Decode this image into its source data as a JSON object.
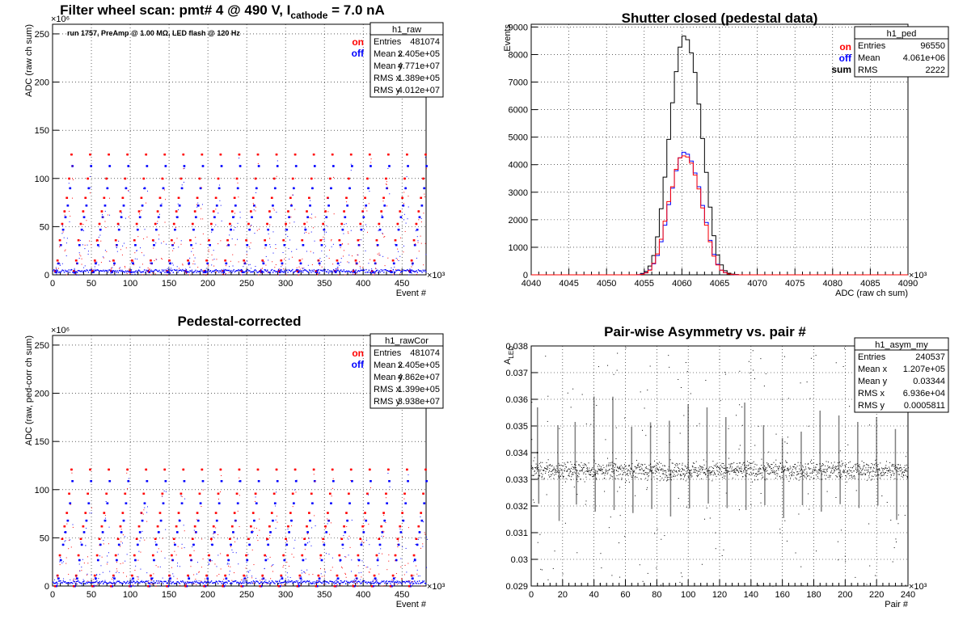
{
  "chart_data": [
    {
      "type": "scatter",
      "title": "Filter wheel scan: pmt#   4 @   490 V, I",
      "title_sub": "cathode",
      "title_tail": " = 7.0 nA",
      "xlabel": "Event #",
      "ylabel": "ADC (raw ch sum)",
      "x_multiplier": "×10³",
      "y_multiplier": "×10⁶",
      "xlim": [
        0,
        481
      ],
      "ylim": [
        0,
        260
      ],
      "xticks": [
        0,
        50,
        100,
        150,
        200,
        250,
        300,
        350,
        400,
        450
      ],
      "yticks": [
        0,
        50,
        100,
        150,
        200,
        250
      ],
      "annotation": "run 1757, PreAmp @ 1.00 MΩ, LED flash @  120 Hz",
      "legend": [
        {
          "name": "on",
          "color": "#ff0000"
        },
        {
          "name": "off",
          "color": "#0000ff"
        }
      ],
      "stats": {
        "name": "h1_raw",
        "rows": [
          [
            "Entries",
            "481074"
          ],
          [
            "Mean x",
            "2.405e+05"
          ],
          [
            "Mean y",
            "4.771e+07"
          ],
          [
            "RMS x",
            "1.389e+05"
          ],
          [
            "RMS y",
            "4.012e+07"
          ]
        ]
      },
      "levels_on": [
        4,
        15,
        36,
        53,
        66,
        80,
        100,
        125
      ],
      "levels_off": [
        3,
        12,
        31,
        47,
        60,
        72,
        90,
        113
      ],
      "step_period": 24
    },
    {
      "type": "histogram",
      "title": "Shutter closed (pedestal data)",
      "xlabel": "ADC (raw ch sum)",
      "ylabel": "Events",
      "x_multiplier": "×10³",
      "xlim": [
        4040,
        4090
      ],
      "ylim": [
        0,
        9100
      ],
      "xticks": [
        4040,
        4045,
        4050,
        4055,
        4060,
        4065,
        4070,
        4075,
        4080,
        4085,
        4090
      ],
      "yticks": [
        0,
        1000,
        2000,
        3000,
        4000,
        5000,
        6000,
        7000,
        8000,
        9000
      ],
      "legend": [
        {
          "name": "on",
          "color": "#ff0000"
        },
        {
          "name": "off",
          "color": "#0000ff"
        },
        {
          "name": "sum",
          "color": "#000000"
        }
      ],
      "stats": {
        "name": "h1_ped",
        "rows": [
          [
            "Entries",
            "96550"
          ],
          [
            "Mean",
            "4.061e+06"
          ],
          [
            "RMS",
            "2222"
          ]
        ]
      },
      "bin_width": 0.5,
      "bin_start": 4054,
      "sum": [
        5,
        50,
        120,
        320,
        700,
        1380,
        2400,
        3550,
        4920,
        6250,
        7380,
        8270,
        8670,
        8540,
        8060,
        7350,
        6200,
        4950,
        3720,
        2460,
        1420,
        720,
        360,
        150,
        60,
        25,
        10
      ],
      "on": [
        2,
        20,
        70,
        170,
        420,
        760,
        1290,
        1950,
        2660,
        3200,
        3830,
        4250,
        4320,
        4280,
        4060,
        3620,
        3120,
        2430,
        1800,
        1200,
        680,
        360,
        170,
        80,
        30,
        10,
        4
      ],
      "off": [
        2,
        25,
        80,
        180,
        400,
        700,
        1200,
        1800,
        2550,
        3150,
        3780,
        4250,
        4450,
        4380,
        4130,
        3700,
        3200,
        2520,
        1900,
        1250,
        740,
        380,
        170,
        80,
        30,
        10,
        4
      ]
    },
    {
      "type": "scatter",
      "title": "Pedestal-corrected",
      "xlabel": "Event #",
      "ylabel": "ADC (raw, ped-corr ch sum)",
      "x_multiplier": "×10³",
      "y_multiplier": "×10⁶",
      "xlim": [
        0,
        481
      ],
      "ylim": [
        0,
        260
      ],
      "xticks": [
        0,
        50,
        100,
        150,
        200,
        250,
        300,
        350,
        400,
        450
      ],
      "yticks": [
        0,
        50,
        100,
        150,
        200,
        250
      ],
      "legend": [
        {
          "name": "on",
          "color": "#ff0000"
        },
        {
          "name": "off",
          "color": "#0000ff"
        }
      ],
      "stats": {
        "name": "h1_rawCor",
        "rows": [
          [
            "Entries",
            "481074"
          ],
          [
            "Mean x",
            "2.405e+05"
          ],
          [
            "Mean y",
            "4.862e+07"
          ],
          [
            "RMS x",
            "1.399e+05"
          ],
          [
            "RMS y",
            "3.938e+07"
          ]
        ]
      },
      "levels_on": [
        0,
        11,
        32,
        49,
        62,
        76,
        96,
        121
      ],
      "levels_off": [
        0,
        8,
        27,
        43,
        56,
        68,
        86,
        109
      ],
      "step_period": 24
    },
    {
      "type": "scatter",
      "title": "Pair-wise Asymmetry vs. pair #",
      "xlabel": "Pair #",
      "ylabel": "A",
      "ylabel_sub": "LED",
      "x_multiplier": "×10³",
      "xlim": [
        0,
        240
      ],
      "ylim": [
        0.029,
        0.038
      ],
      "xticks": [
        0,
        20,
        40,
        60,
        80,
        100,
        120,
        140,
        160,
        180,
        200,
        220,
        240
      ],
      "yticks": [
        0.029,
        0.03,
        0.031,
        0.032,
        0.033,
        0.034,
        0.035,
        0.036,
        0.037,
        0.038
      ],
      "ytick_labels": [
        "0.029",
        "0.03",
        "0.031",
        "0.032",
        "0.033",
        "0.034",
        "0.035",
        "0.036",
        "0.037",
        "0.038"
      ],
      "stats": {
        "name": "h1_asym_my",
        "rows": [
          [
            "Entries",
            "240537"
          ],
          [
            "Mean x",
            "1.207e+05"
          ],
          [
            "Mean y",
            "0.03344"
          ],
          [
            "RMS x",
            "6.936e+04"
          ],
          [
            "RMS y",
            "0.0005811"
          ]
        ]
      },
      "band_center": 0.03335,
      "band_halfwidth": 0.0006,
      "spike_positions": [
        4,
        17,
        28,
        40,
        52,
        64,
        76,
        88,
        100,
        112,
        124,
        136,
        148,
        160,
        172,
        184,
        196,
        208,
        220,
        232
      ]
    }
  ]
}
